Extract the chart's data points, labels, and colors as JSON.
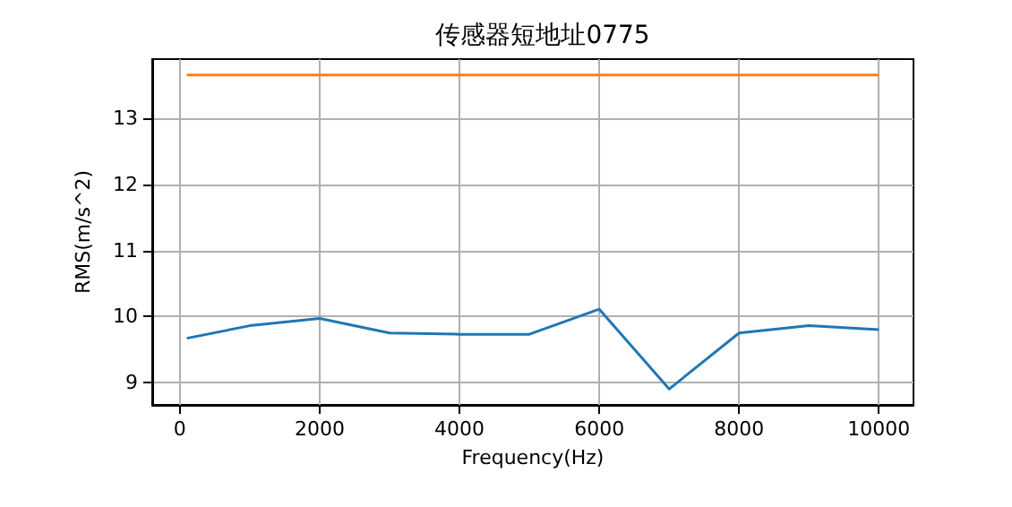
{
  "chart_data": {
    "type": "line",
    "title": "传感器短地址0775",
    "xlabel": "Frequency(Hz)",
    "ylabel": "RMS(m/s^2)",
    "x": [
      100,
      1000,
      2000,
      3000,
      4000,
      5000,
      6000,
      7000,
      8000,
      9000,
      10000
    ],
    "series": [
      {
        "color": "#1f77b4",
        "values": [
          9.67,
          9.86,
          9.97,
          9.75,
          9.73,
          9.73,
          10.11,
          8.9,
          9.75,
          9.86,
          9.8
        ]
      },
      {
        "color": "#ff7f0e",
        "values": [
          13.66,
          13.66,
          13.66,
          13.66,
          13.66,
          13.66,
          13.66,
          13.66,
          13.66,
          13.66,
          13.66
        ]
      }
    ],
    "xlim": [
      -395,
      10495
    ],
    "xticks": [
      0,
      2000,
      4000,
      6000,
      8000,
      10000
    ],
    "ylim": [
      8.66,
      13.9
    ],
    "yticks": [
      9,
      10,
      11,
      12,
      13
    ],
    "grid": true,
    "marker": "none",
    "line_style": "solid"
  }
}
